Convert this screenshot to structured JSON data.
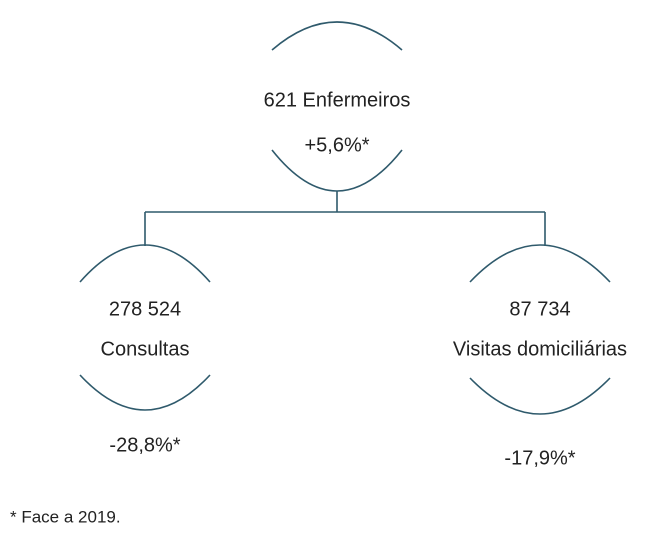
{
  "root": {
    "label": "621 Enfermeiros",
    "change": "+5,6%*"
  },
  "children": [
    {
      "value": "278 524",
      "label": "Consultas",
      "change": "-28,8%*"
    },
    {
      "value": "87 734",
      "label": "Visitas domiciliárias",
      "change": "-17,9%*"
    }
  ],
  "footnote": "* Face a 2019."
}
